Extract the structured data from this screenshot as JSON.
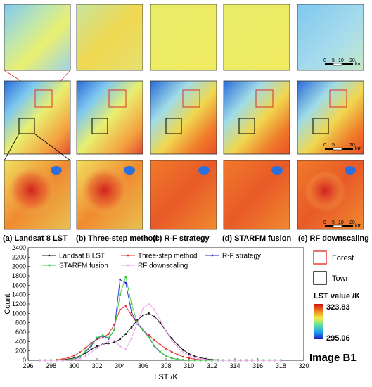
{
  "panels": {
    "labels": [
      "(a) Landsat 8 LST",
      "(b) Three-step method",
      "(c) R-F strategy",
      "(d) STARFM fusion",
      "(e) RF downscaling"
    ],
    "scale_bar": {
      "ticks": [
        "0",
        "5",
        "10",
        "20"
      ],
      "unit": "km"
    }
  },
  "side_legend": {
    "forest_label": "Forest",
    "town_label": "Town",
    "forest_color": "#e0302a",
    "town_color": "#000000",
    "colorbar_title": "LST value /K",
    "colorbar_max": "323.83",
    "colorbar_min": "295.06",
    "image_title": "Image B1"
  },
  "chart_data": {
    "type": "line",
    "xlabel": "LST /K",
    "ylabel": "Count",
    "xlim": [
      296,
      320
    ],
    "ylim": [
      0,
      2400
    ],
    "xticks": [
      296,
      298,
      300,
      302,
      304,
      306,
      308,
      310,
      312,
      314,
      316,
      318,
      320
    ],
    "yticks": [
      0,
      200,
      400,
      600,
      800,
      1000,
      1200,
      1400,
      1600,
      1800,
      2000,
      2200,
      2400
    ],
    "x": [
      297,
      297.5,
      298,
      298.5,
      299,
      299.5,
      300,
      300.5,
      301,
      301.5,
      302,
      302.5,
      303,
      303.5,
      304,
      304.5,
      305,
      305.5,
      306,
      306.5,
      307,
      307.5,
      308,
      308.5,
      309,
      309.5,
      310,
      310.5,
      311,
      311.5,
      312,
      312.5,
      313,
      313.5,
      314,
      314.5,
      315,
      315.5,
      316,
      316.5,
      317,
      317.5,
      318
    ],
    "legend_position": "top",
    "series": [
      {
        "name": "Landsat 8 LST",
        "color": "#1a1a1a",
        "marker": "circle",
        "values": [
          0,
          0,
          2,
          5,
          12,
          25,
          50,
          90,
          150,
          230,
          300,
          340,
          360,
          380,
          450,
          560,
          700,
          850,
          960,
          1000,
          930,
          800,
          620,
          470,
          330,
          220,
          140,
          90,
          55,
          30,
          15,
          8,
          4,
          2,
          1,
          0,
          0,
          0,
          0,
          0,
          0,
          0,
          0
        ]
      },
      {
        "name": "Three-step method",
        "color": "#e0302a",
        "marker": "circle",
        "values": [
          0,
          0,
          3,
          10,
          25,
          55,
          100,
          170,
          260,
          370,
          450,
          480,
          560,
          760,
          1080,
          1150,
          960,
          780,
          640,
          540,
          430,
          330,
          250,
          180,
          120,
          75,
          45,
          25,
          12,
          6,
          3,
          1,
          0,
          0,
          0,
          0,
          0,
          0,
          0,
          0,
          0,
          0,
          0
        ]
      },
      {
        "name": "R-F strategy",
        "color": "#2a2ad0",
        "marker": "circle",
        "values": [
          0,
          0,
          0,
          0,
          2,
          8,
          25,
          70,
          170,
          310,
          470,
          520,
          460,
          650,
          1720,
          1650,
          1020,
          780,
          650,
          490,
          300,
          170,
          90,
          45,
          20,
          8,
          3,
          1,
          0,
          0,
          0,
          0,
          0,
          0,
          0,
          0,
          0,
          0,
          0,
          0,
          0,
          0,
          0
        ]
      },
      {
        "name": "STARFM fusion",
        "color": "#3ad03a",
        "marker": "square",
        "values": [
          0,
          0,
          0,
          0,
          2,
          8,
          30,
          80,
          190,
          330,
          480,
          530,
          480,
          640,
          1400,
          1780,
          1200,
          800,
          660,
          500,
          310,
          180,
          95,
          48,
          22,
          9,
          3,
          1,
          0,
          0,
          0,
          0,
          0,
          0,
          0,
          0,
          0,
          0,
          0,
          0,
          0,
          0,
          0
        ]
      },
      {
        "name": "RF downscaling",
        "color": "#e8a0e8",
        "marker": "triangle",
        "values": [
          0,
          0,
          0,
          0,
          1,
          4,
          15,
          40,
          90,
          170,
          260,
          340,
          410,
          420,
          300,
          230,
          470,
          800,
          1100,
          1200,
          1080,
          850,
          620,
          420,
          280,
          170,
          100,
          55,
          28,
          14,
          6,
          2,
          1,
          0,
          0,
          0,
          0,
          0,
          0,
          0,
          0,
          0,
          0
        ]
      }
    ]
  }
}
